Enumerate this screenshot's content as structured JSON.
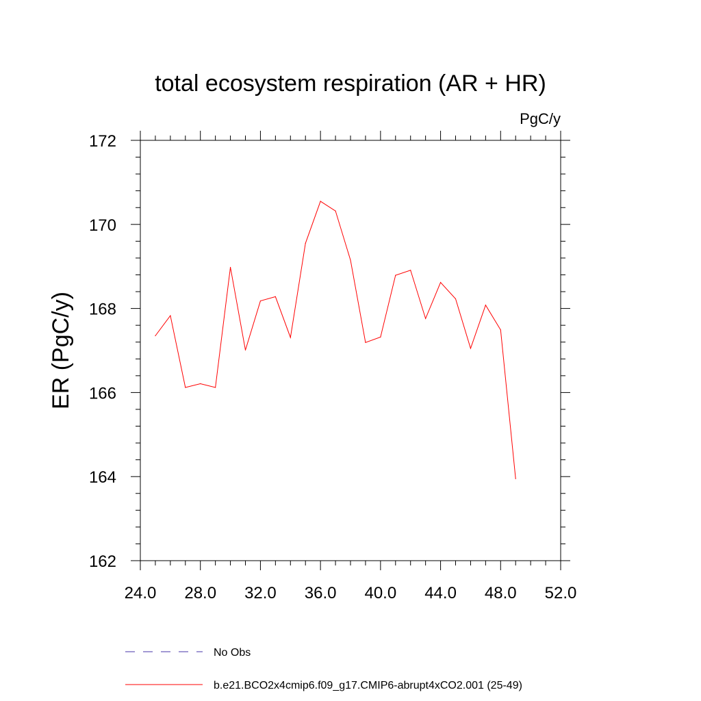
{
  "chart_data": {
    "type": "line",
    "title": "total ecosystem respiration (AR + HR)",
    "units": "PgC/y",
    "xlabel": "",
    "ylabel": "ER  (PgC/y)",
    "xlim": [
      24,
      52
    ],
    "ylim": [
      162,
      172
    ],
    "xticks": [
      24,
      28,
      32,
      36,
      40,
      44,
      48,
      52
    ],
    "xtick_labels": [
      "24.0",
      "28.0",
      "32.0",
      "36.0",
      "40.0",
      "44.0",
      "48.0",
      "52.0"
    ],
    "yticks": [
      162,
      164,
      166,
      168,
      170,
      172
    ],
    "ytick_labels": [
      "162",
      "164",
      "166",
      "168",
      "170",
      "172"
    ],
    "grid": false,
    "series": [
      {
        "name": "b.e21.BCO2x4cmip6.f09_g17.CMIP6-abrupt4xCO2.001 (25-49)",
        "color": "#ff0000",
        "dash": "solid",
        "x": [
          25,
          26,
          27,
          28,
          29,
          30,
          31,
          32,
          33,
          34,
          35,
          36,
          37,
          38,
          39,
          40,
          41,
          42,
          43,
          44,
          45,
          46,
          47,
          48,
          49
        ],
        "values": [
          167.35,
          167.83,
          166.12,
          166.21,
          166.12,
          168.98,
          167.01,
          168.18,
          168.28,
          167.31,
          169.55,
          170.55,
          170.32,
          169.15,
          167.19,
          167.32,
          168.79,
          168.91,
          167.76,
          168.62,
          168.23,
          167.05,
          168.08,
          167.49,
          163.95
        ]
      },
      {
        "name": "No Obs",
        "color": "#4433aa",
        "dash": "dashed",
        "x": [],
        "values": []
      }
    ],
    "legend": {
      "placement": "bottom-left",
      "entries": [
        {
          "label": "No Obs",
          "color": "#4433aa",
          "dash": "dashed"
        },
        {
          "label": "b.e21.BCO2x4cmip6.f09_g17.CMIP6-abrupt4xCO2.001 (25-49)",
          "color": "#ff0000",
          "dash": "solid"
        }
      ]
    }
  }
}
